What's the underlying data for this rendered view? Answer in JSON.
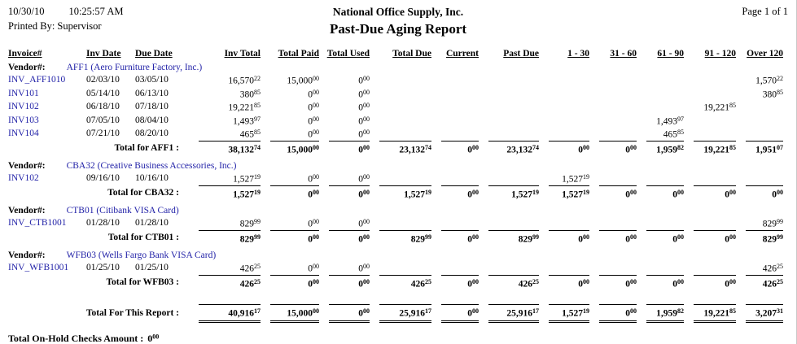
{
  "header": {
    "date": "10/30/10",
    "time": "10:25:57 AM",
    "printed_by": "Printed By: Supervisor",
    "company": "National Office Supply, Inc.",
    "title": "Past-Due Aging Report",
    "page": "Page 1 of 1"
  },
  "labels": {
    "vendor_prefix": "Vendor#:"
  },
  "columns": [
    "Invoice#",
    "Inv Date",
    "Due Date",
    "Inv Total",
    "Total Paid",
    "Total Used",
    "Total Due",
    "Current",
    "Past Due",
    "1 - 30",
    "31 - 60",
    "61 - 90",
    "91 - 120",
    "Over 120"
  ],
  "vendors": [
    {
      "name": "AFF1 (Aero Furniture Factory, Inc.)",
      "invoices": [
        {
          "id": "INV_AFF1010",
          "inv_date": "02/03/10",
          "due_date": "03/05/10",
          "amounts": [
            "16,570.22",
            "15,000.00",
            "0.00",
            "",
            "",
            "",
            "",
            "",
            "",
            "",
            "1,570.22"
          ]
        },
        {
          "id": "INV101",
          "inv_date": "05/14/10",
          "due_date": "06/13/10",
          "amounts": [
            "380.85",
            "0.00",
            "0.00",
            "",
            "",
            "",
            "",
            "",
            "",
            "",
            "380.85"
          ]
        },
        {
          "id": "INV102",
          "inv_date": "06/18/10",
          "due_date": "07/18/10",
          "amounts": [
            "19,221.85",
            "0.00",
            "0.00",
            "",
            "",
            "",
            "",
            "",
            "",
            "19,221.85",
            ""
          ]
        },
        {
          "id": "INV103",
          "inv_date": "07/05/10",
          "due_date": "08/04/10",
          "amounts": [
            "1,493.97",
            "0.00",
            "0.00",
            "",
            "",
            "",
            "",
            "",
            "1,493.97",
            "",
            ""
          ]
        },
        {
          "id": "INV104",
          "inv_date": "07/21/10",
          "due_date": "08/20/10",
          "amounts": [
            "465.85",
            "0.00",
            "0.00",
            "",
            "",
            "",
            "",
            "",
            "465.85",
            "",
            ""
          ]
        }
      ],
      "total_label": "Total for AFF1 :",
      "totals": [
        "38,132.74",
        "15,000.00",
        "0.00",
        "23,132.74",
        "0.00",
        "23,132.74",
        "0.00",
        "0.00",
        "1,959.82",
        "19,221.85",
        "1,951.07"
      ]
    },
    {
      "name": "CBA32 (Creative Business Accessories, Inc.)",
      "invoices": [
        {
          "id": "INV102",
          "inv_date": "09/16/10",
          "due_date": "10/16/10",
          "amounts": [
            "1,527.19",
            "0.00",
            "0.00",
            "",
            "",
            "",
            "1,527.19",
            "",
            "",
            "",
            ""
          ]
        }
      ],
      "total_label": "Total for CBA32 :",
      "totals": [
        "1,527.19",
        "0.00",
        "0.00",
        "1,527.19",
        "0.00",
        "1,527.19",
        "1,527.19",
        "0.00",
        "0.00",
        "0.00",
        "0.00"
      ]
    },
    {
      "name": "CTB01 (Citibank VISA Card)",
      "invoices": [
        {
          "id": "INV_CTB1001",
          "inv_date": "01/28/10",
          "due_date": "01/28/10",
          "amounts": [
            "829.99",
            "0.00",
            "0.00",
            "",
            "",
            "",
            "",
            "",
            "",
            "",
            "829.99"
          ]
        }
      ],
      "total_label": "Total for CTB01 :",
      "totals": [
        "829.99",
        "0.00",
        "0.00",
        "829.99",
        "0.00",
        "829.99",
        "0.00",
        "0.00",
        "0.00",
        "0.00",
        "829.99"
      ]
    },
    {
      "name": "WFB03 (Wells Fargo Bank VISA Card)",
      "invoices": [
        {
          "id": "INV_WFB1001",
          "inv_date": "01/25/10",
          "due_date": "01/25/10",
          "amounts": [
            "426.25",
            "0.00",
            "0.00",
            "",
            "",
            "",
            "",
            "",
            "",
            "",
            "426.25"
          ]
        }
      ],
      "total_label": "Total for WFB03 :",
      "totals": [
        "426.25",
        "0.00",
        "0.00",
        "426.25",
        "0.00",
        "426.25",
        "0.00",
        "0.00",
        "0.00",
        "0.00",
        "426.25"
      ]
    }
  ],
  "report_total": {
    "label": "Total For This Report :",
    "values": [
      "40,916.17",
      "15,000.00",
      "0.00",
      "25,916.17",
      "0.00",
      "25,916.17",
      "1,527.19",
      "0.00",
      "1,959.82",
      "19,221.85",
      "3,207.31"
    ]
  },
  "footer": {
    "label": "Total On-Hold Checks Amount :",
    "amount": "0.00"
  },
  "colors": {
    "link_blue": "#2323a8"
  }
}
